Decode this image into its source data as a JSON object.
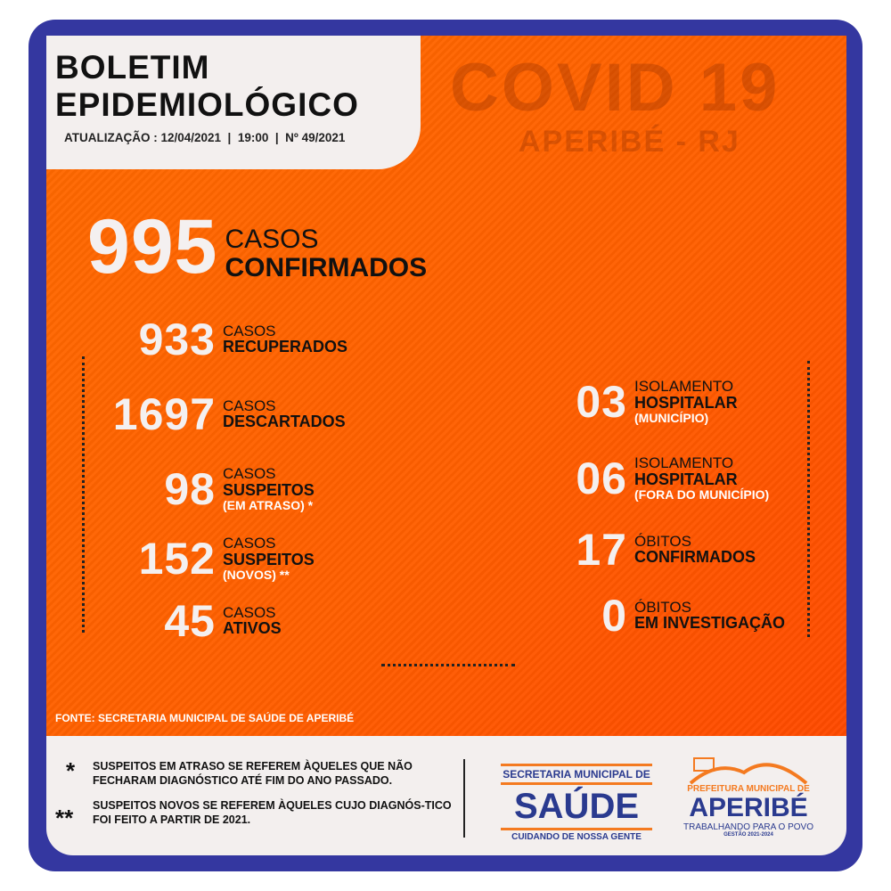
{
  "header": {
    "title_line1": "BOLETIM",
    "title_line2": "EPIDEMIOLÓGICO",
    "update": "ATUALIZAÇÃO : 12/04/2021  |  19:00  |  Nº 49/2021",
    "watermark": "COVID 19",
    "location": "APERIBÉ - RJ"
  },
  "main": {
    "num": "995",
    "l1": "CASOS",
    "l2": "CONFIRMADOS"
  },
  "left_stats": [
    {
      "num": "933",
      "l1": "CASOS",
      "l2": "RECUPERADOS",
      "l3": ""
    },
    {
      "num": "1697",
      "l1": "CASOS",
      "l2": "DESCARTADOS",
      "l3": ""
    },
    {
      "num": "98",
      "l1": "CASOS",
      "l2": "SUSPEITOS",
      "l3": "(EM ATRASO) *"
    },
    {
      "num": "152",
      "l1": "CASOS",
      "l2": "SUSPEITOS",
      "l3": "(NOVOS) **"
    },
    {
      "num": "45",
      "l1": "CASOS",
      "l2": "ATIVOS",
      "l3": ""
    }
  ],
  "right_stats": [
    {
      "num": "03",
      "l1": "ISOLAMENTO",
      "l2": "HOSPITALAR",
      "l3": "(MUNICÍPIO)"
    },
    {
      "num": "06",
      "l1": "ISOLAMENTO",
      "l2": "HOSPITALAR",
      "l3": "(FORA DO MUNICÍPIO)"
    },
    {
      "num": "17",
      "l1": "ÓBITOS",
      "l2": "CONFIRMADOS",
      "l3": ""
    },
    {
      "num": "0",
      "l1": "ÓBITOS",
      "l2": "EM INVESTIGAÇÃO",
      "l3": ""
    }
  ],
  "source": "FONTE: SECRETARIA MUNICIPAL DE SAÚDE DE APERIBÉ",
  "notes": [
    {
      "mark": "*",
      "text": "SUSPEITOS EM ATRASO SE REFEREM ÀQUELES QUE NÃO FECHARAM DIAGNÓSTICO ATÉ FIM DO ANO PASSADO."
    },
    {
      "mark": "**",
      "text": "SUSPEITOS NOVOS SE REFEREM ÀQUELES CUJO DIAGNÓS-TICO FOI FEITO A PARTIR DE 2021."
    }
  ],
  "logos": {
    "saude_top": "SECRETARIA MUNICIPAL DE",
    "saude_main": "SAÚDE",
    "saude_bottom": "CUIDANDO DE NOSSA GENTE",
    "pref_top": "PREFEITURA MUNICIPAL DE",
    "pref_main": "APERIBÉ",
    "pref_slogan": "TRABALHANDO PARA O POVO",
    "pref_term": "GESTÃO 2021-2024"
  },
  "colors": {
    "frame": "#3437a0",
    "orange": "#ff6a00",
    "logo_blue": "#2a3a8f",
    "logo_orange": "#f47a20"
  }
}
